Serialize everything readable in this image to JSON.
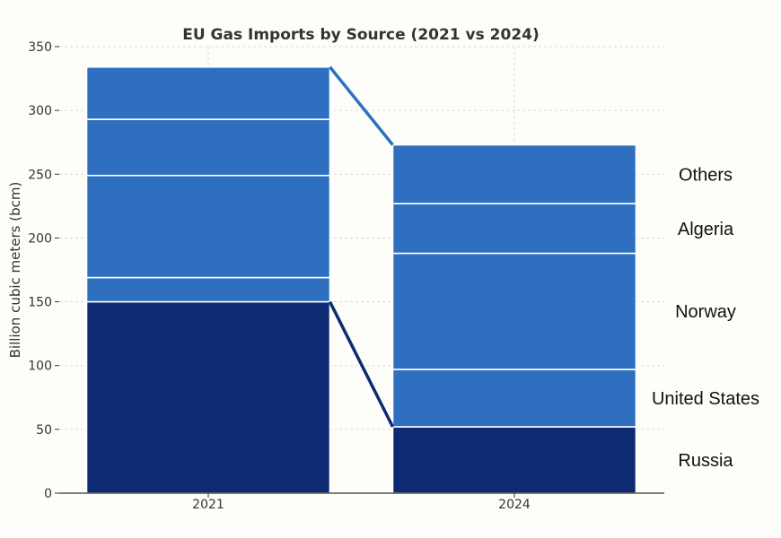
{
  "chart_data": {
    "type": "bar",
    "stacked": true,
    "title": "EU Gas Imports by Source (2021 vs 2024)",
    "xlabel": "",
    "ylabel": "Billion cubic meters (bcm)",
    "ylim": [
      0,
      350
    ],
    "yticks": [
      "0",
      "50",
      "100",
      "150",
      "200",
      "250",
      "300",
      "350"
    ],
    "grid": true,
    "categories": [
      "2021",
      "2024"
    ],
    "series": [
      {
        "name": "Russia",
        "values": [
          150,
          52
        ],
        "color": "#0d2a72"
      },
      {
        "name": "United States",
        "values": [
          19,
          45
        ],
        "color": "#2e6fbf"
      },
      {
        "name": "Norway",
        "values": [
          80,
          91
        ],
        "color": "#2e6fbf"
      },
      {
        "name": "Algeria",
        "values": [
          44,
          39
        ],
        "color": "#2e6fbf"
      },
      {
        "name": "Others",
        "values": [
          41,
          46
        ],
        "color": "#2e6fbf"
      }
    ],
    "connector_colors": {
      "russia": "#0d2a72",
      "total": "#2e6fbf"
    }
  }
}
